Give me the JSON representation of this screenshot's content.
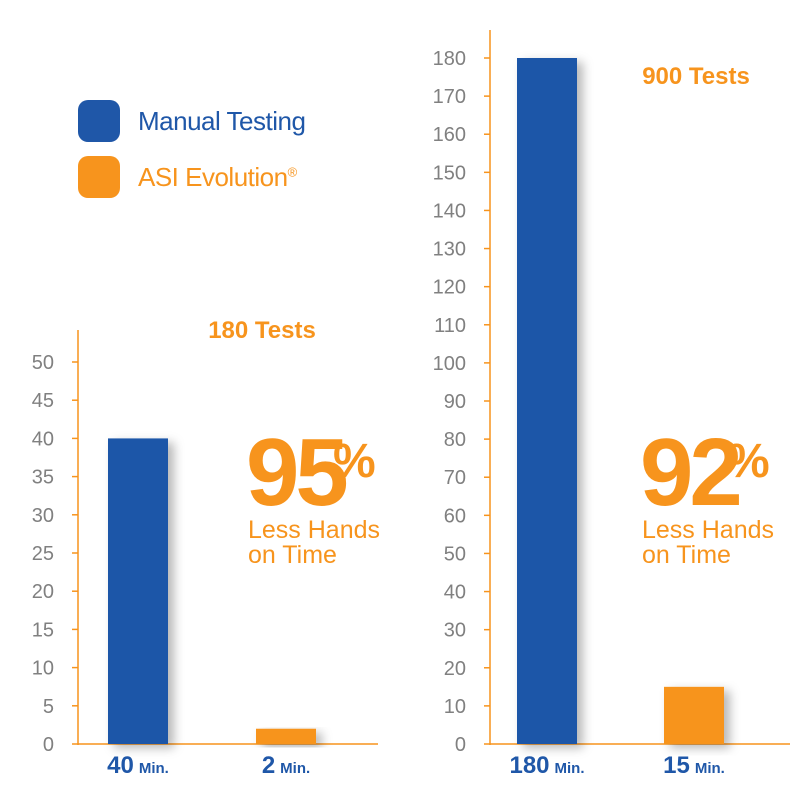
{
  "colors": {
    "manual": "#1f57a8",
    "asi": "#f7941d",
    "axis": "#f7941d",
    "tick_text": "#808080"
  },
  "legend": {
    "items": [
      {
        "key": "manual",
        "label": "Manual Testing",
        "mark": ""
      },
      {
        "key": "asi",
        "label": "ASI Evolution",
        "mark": "®"
      }
    ]
  },
  "chart_data": [
    {
      "type": "bar",
      "title": "180 Tests",
      "categories": [
        "40 Min.",
        "2 Min."
      ],
      "category_parts": [
        {
          "num": "40",
          "unit": "Min."
        },
        {
          "num": "2",
          "unit": "Min."
        }
      ],
      "series": [
        {
          "name": "",
          "values": [
            40,
            2
          ]
        }
      ],
      "bar_colors": [
        "manual",
        "asi"
      ],
      "ylim": [
        0,
        50
      ],
      "ytick_step": 5,
      "callout": {
        "percent": "95",
        "symbol": "%",
        "line1": "Less Hands",
        "line2": "on Time"
      },
      "xlabel": "",
      "ylabel": "",
      "grid": false
    },
    {
      "type": "bar",
      "title": "900 Tests",
      "categories": [
        "180 Min.",
        "15 Min."
      ],
      "category_parts": [
        {
          "num": "180",
          "unit": "Min."
        },
        {
          "num": "15",
          "unit": "Min."
        }
      ],
      "series": [
        {
          "name": "",
          "values": [
            180,
            15
          ]
        }
      ],
      "bar_colors": [
        "manual",
        "asi"
      ],
      "ylim": [
        0,
        180
      ],
      "ytick_step": 10,
      "callout": {
        "percent": "92",
        "symbol": "%",
        "line1": "Less Hands",
        "line2": "on Time"
      },
      "xlabel": "",
      "ylabel": "",
      "grid": false
    }
  ]
}
